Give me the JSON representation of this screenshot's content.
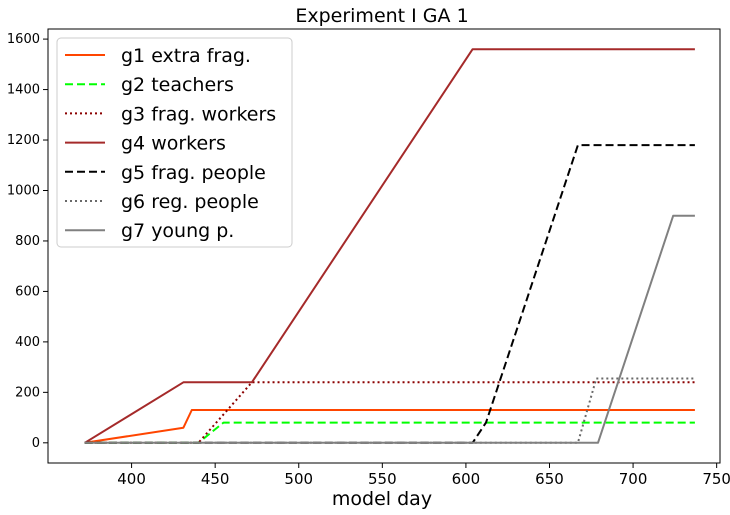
{
  "chart_data": {
    "type": "line",
    "title": "Experiment I GA 1",
    "xlabel": "model day",
    "ylabel": "",
    "xlim": [
      350,
      752
    ],
    "ylim": [
      -80,
      1640
    ],
    "xticks": [
      400,
      450,
      500,
      550,
      600,
      650,
      700,
      750
    ],
    "yticks": [
      0,
      200,
      400,
      600,
      800,
      1000,
      1200,
      1400,
      1600
    ],
    "legend_position": "top-left",
    "series": [
      {
        "name": "g1 extra frag.",
        "color": "#ff4500",
        "style": "solid",
        "points": [
          [
            372,
            0
          ],
          [
            431,
            60
          ],
          [
            436,
            130
          ],
          [
            737,
            130
          ]
        ]
      },
      {
        "name": "g2 teachers",
        "color": "#00ff00",
        "style": "dashed",
        "points": [
          [
            372,
            0
          ],
          [
            440,
            0
          ],
          [
            455,
            80
          ],
          [
            737,
            80
          ]
        ]
      },
      {
        "name": "g3 frag. workers",
        "color": "#8b0000",
        "style": "dotted",
        "points": [
          [
            372,
            0
          ],
          [
            440,
            0
          ],
          [
            472,
            240
          ],
          [
            737,
            240
          ]
        ]
      },
      {
        "name": "g4 workers",
        "color": "#a52a2a",
        "style": "solid",
        "points": [
          [
            372,
            0
          ],
          [
            431,
            240
          ],
          [
            472,
            240
          ],
          [
            604,
            1560
          ],
          [
            737,
            1560
          ]
        ]
      },
      {
        "name": "g5 frag. people",
        "color": "#000000",
        "style": "dashed",
        "points": [
          [
            372,
            0
          ],
          [
            604,
            0
          ],
          [
            612,
            80
          ],
          [
            667,
            1180
          ],
          [
            737,
            1180
          ]
        ]
      },
      {
        "name": "g6 reg. people",
        "color": "#696969",
        "style": "dotted",
        "points": [
          [
            372,
            0
          ],
          [
            667,
            0
          ],
          [
            678,
            255
          ],
          [
            737,
            255
          ]
        ]
      },
      {
        "name": "g7 young p.",
        "color": "#808080",
        "style": "solid",
        "points": [
          [
            372,
            0
          ],
          [
            679,
            0
          ],
          [
            724,
            900
          ],
          [
            737,
            900
          ]
        ]
      }
    ]
  }
}
